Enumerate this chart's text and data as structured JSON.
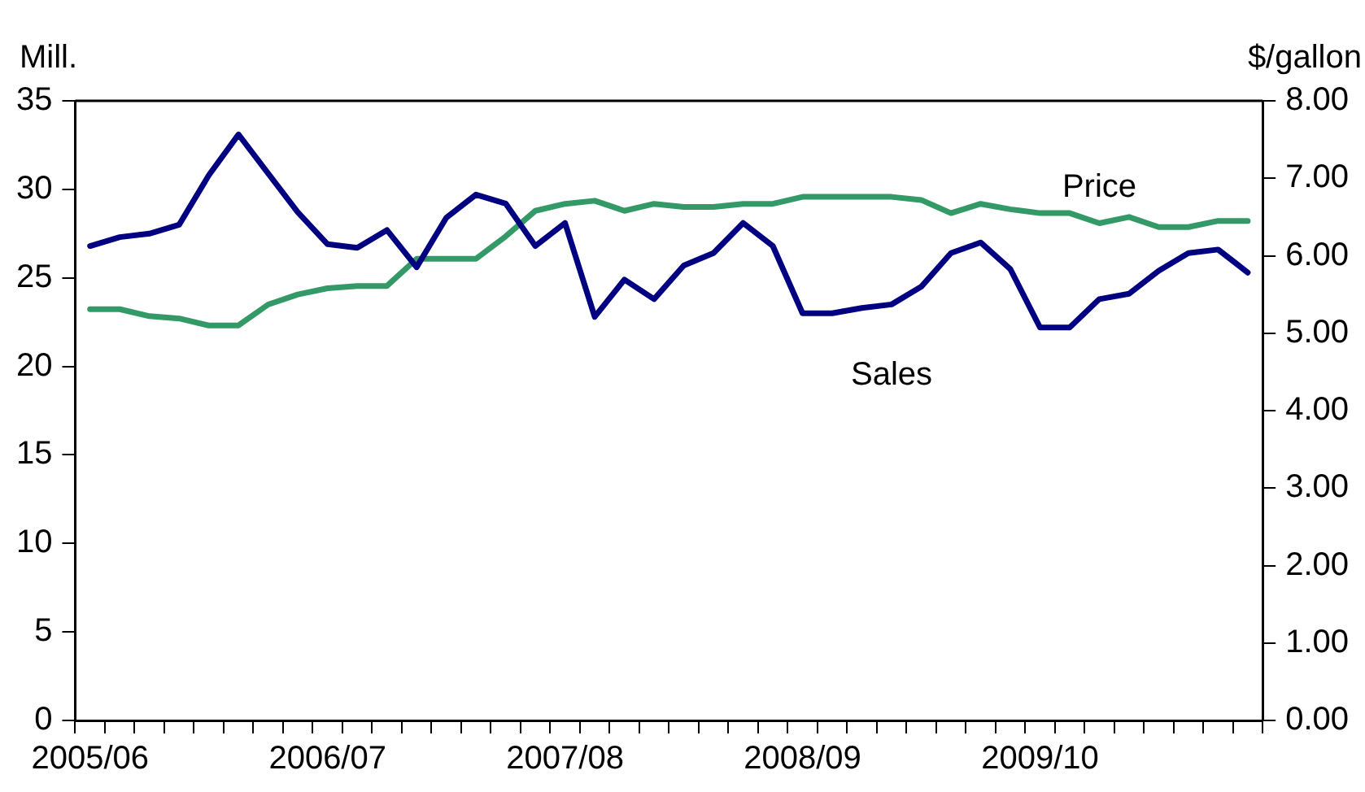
{
  "chart_data": {
    "type": "line",
    "ylabel": "Mill.",
    "y2label": "$/gallon",
    "categories": [
      "2005/06",
      null,
      null,
      null,
      null,
      null,
      null,
      null,
      "2006/07",
      null,
      null,
      null,
      null,
      null,
      null,
      null,
      "2007/08",
      null,
      null,
      null,
      null,
      null,
      null,
      null,
      "2008/09",
      null,
      null,
      null,
      null,
      null,
      null,
      null,
      "2009/10",
      null,
      null,
      null,
      null,
      null,
      null,
      null
    ],
    "series": [
      {
        "name": "Sales",
        "color": "#000080",
        "values": [
          26.8,
          27.3,
          27.5,
          28.0,
          30.8,
          33.1,
          30.9,
          28.7,
          26.9,
          26.7,
          27.7,
          25.6,
          28.4,
          29.7,
          29.2,
          26.8,
          28.1,
          22.8,
          24.9,
          23.8,
          25.7,
          26.4,
          28.1,
          26.8,
          23.0,
          23.0,
          23.3,
          23.5,
          24.5,
          26.4,
          27.0,
          25.5,
          22.2,
          22.2,
          23.8,
          24.1,
          25.4,
          26.4,
          26.6,
          25.3
        ]
      },
      {
        "name": "Price",
        "color": "#339966",
        "axis": "y2",
        "values": [
          5.31,
          5.31,
          5.22,
          5.19,
          5.1,
          5.1,
          5.37,
          5.5,
          5.58,
          5.61,
          5.61,
          5.96,
          5.96,
          5.96,
          6.25,
          6.58,
          6.67,
          6.71,
          6.58,
          6.67,
          6.63,
          6.63,
          6.67,
          6.67,
          6.76,
          6.76,
          6.76,
          6.76,
          6.72,
          6.55,
          6.67,
          6.6,
          6.55,
          6.55,
          6.42,
          6.5,
          6.37,
          6.37,
          6.45,
          6.45
        ]
      }
    ],
    "ylim": [
      0,
      35
    ],
    "yticks": [
      0,
      5,
      10,
      15,
      20,
      25,
      30,
      35
    ],
    "y2lim": [
      0,
      8
    ],
    "y2ticks": [
      {
        "value": 0,
        "label": "0.00"
      },
      {
        "value": 1,
        "label": "1.00"
      },
      {
        "value": 2,
        "label": "2.00"
      },
      {
        "value": 3,
        "label": "3.00"
      },
      {
        "value": 4,
        "label": "4.00"
      },
      {
        "value": 5,
        "label": "5.00"
      },
      {
        "value": 6,
        "label": "6.00"
      },
      {
        "value": 7,
        "label": "7.00"
      },
      {
        "value": 8,
        "label": "8.00"
      }
    ],
    "grid": false,
    "legend": false,
    "marker": "none",
    "line_style": "solid"
  }
}
